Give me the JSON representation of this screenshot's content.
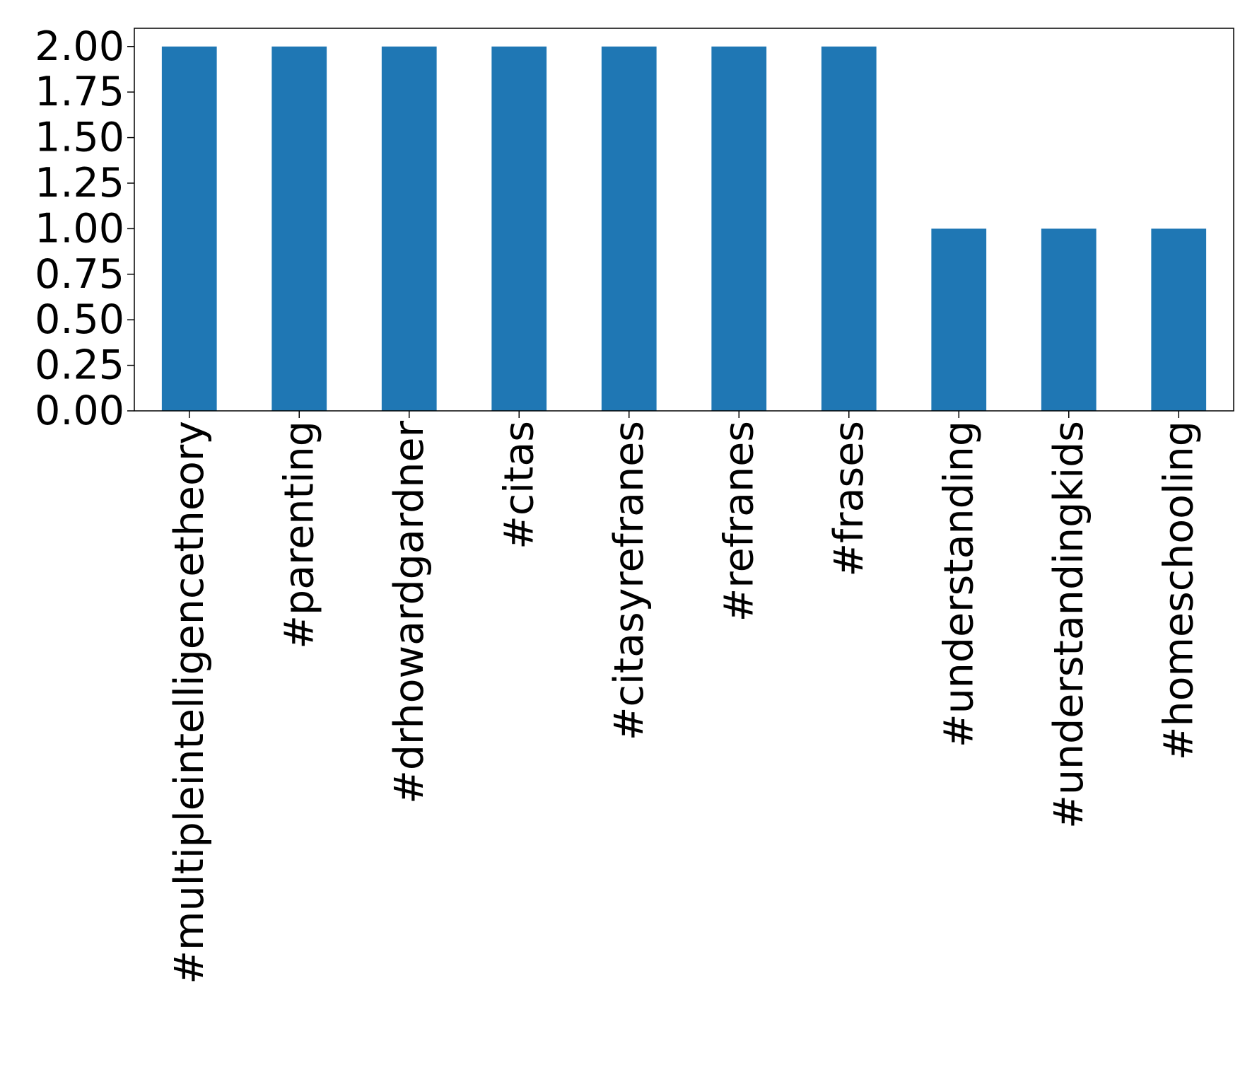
{
  "chart_data": {
    "type": "bar",
    "title": "",
    "xlabel": "",
    "ylabel": "",
    "categories": [
      "#multipleintelligencetheory",
      "#parenting",
      "#drhowardgardner",
      "#citas",
      "#citasyrefranes",
      "#refranes",
      "#frases",
      "#understanding",
      "#understandingkids",
      "#homeschooling"
    ],
    "values": [
      2,
      2,
      2,
      2,
      2,
      2,
      2,
      1,
      1,
      1
    ],
    "ylim": [
      0,
      2.1
    ],
    "yticks": [
      0,
      0.25,
      0.5,
      0.75,
      1,
      1.25,
      1.5,
      1.75,
      2
    ],
    "ytick_labels": [
      "0.00",
      "0.25",
      "0.50",
      "0.75",
      "1.00",
      "1.25",
      "1.50",
      "1.75",
      "2.00"
    ],
    "bar_color": "#1f77b4",
    "grid": false,
    "legend": "none"
  }
}
